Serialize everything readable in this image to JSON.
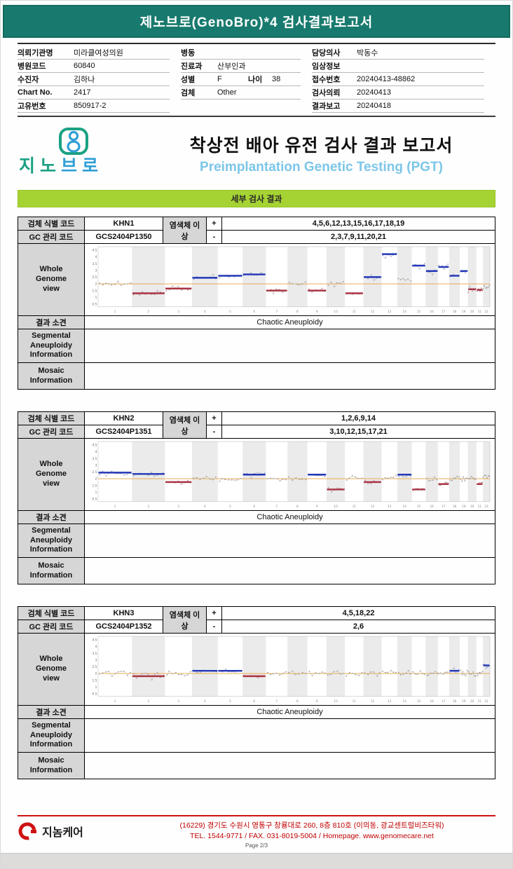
{
  "page": {
    "title": "제노브로(GenoBro)*4 검사결과보고서",
    "page_label": "Page 2/3"
  },
  "patient": {
    "col1": [
      {
        "label": "의뢰기관명",
        "value": "미라클여성의원"
      },
      {
        "label": "병원코드",
        "value": "60840"
      },
      {
        "label": "수진자",
        "value": "김하나"
      },
      {
        "label": "Chart No.",
        "value": "2417"
      },
      {
        "label": "고유번호",
        "value": "850917-2"
      }
    ],
    "col2": [
      {
        "label": "병동",
        "value": ""
      },
      {
        "label": "진료과",
        "value": "산부인과"
      },
      {
        "label": "성별",
        "value": "F",
        "label2": "나이",
        "value2": "38"
      },
      {
        "label": "검체",
        "value": "Other"
      }
    ],
    "col3": [
      {
        "label": "담당의사",
        "value": "박동수"
      },
      {
        "label": "임상정보",
        "value": ""
      },
      {
        "label": "접수번호",
        "value": "20240413-48862"
      },
      {
        "label": "검사의뢰",
        "value": "20240413"
      },
      {
        "label": "결과보고",
        "value": "20240418"
      }
    ]
  },
  "report_header": {
    "logo_text_1": "지노",
    "logo_text_2": "브로",
    "title_ko": "착상전 배아 유전 검사 결과 보고서",
    "title_en": "Preimplantation Genetic Testing (PGT)"
  },
  "section_bar": "세부 검사 결과",
  "labels": {
    "specimen_code": "검체 식별 코드",
    "gc_code": "GC 관리 코드",
    "chromosome_abnormality": "염색체 이상",
    "plus": "+",
    "minus": "-",
    "wgv": "Whole\nGenome\nview",
    "result": "결과 소견",
    "segmental": "Segmental\nAneuploidy\nInformation",
    "mosaic": "Mosaic\nInformation"
  },
  "samples": [
    {
      "specimen_id": "KHN1",
      "gc_code": "GCS2404P1350",
      "gain_chromosomes": "4,5,6,12,13,15,16,17,18,19",
      "loss_chromosomes": "2,3,7,9,11,20,21",
      "result": "Chaotic Aneuploidy",
      "segmental": "",
      "mosaic": ""
    },
    {
      "specimen_id": "KHN2",
      "gc_code": "GCS2404P1351",
      "gain_chromosomes": "1,2,6,9,14",
      "loss_chromosomes": "3,10,12,15,17,21",
      "result": "Chaotic Aneuploidy",
      "segmental": "",
      "mosaic": ""
    },
    {
      "specimen_id": "KHN3",
      "gc_code": "GCS2404P1352",
      "gain_chromosomes": "4,5,18,22",
      "loss_chromosomes": "2,6",
      "result": "Chaotic Aneuploidy",
      "segmental": "",
      "mosaic": ""
    }
  ],
  "chart_data": [
    {
      "type": "scatter",
      "title": "KHN1 Whole Genome view",
      "x_categories": [
        "1",
        "2",
        "3",
        "4",
        "5",
        "6",
        "7",
        "8",
        "9",
        "10",
        "11",
        "12",
        "13",
        "14",
        "15",
        "16",
        "17",
        "18",
        "19",
        "20",
        "21",
        "22"
      ],
      "ylim": [
        0.3,
        4.75
      ],
      "yticks": [
        0.5,
        1,
        1.5,
        2,
        2.5,
        3,
        3.5,
        4,
        4.5
      ],
      "baseline": 2,
      "values": [
        2.0,
        1.3,
        1.65,
        2.45,
        2.6,
        2.7,
        1.5,
        2.05,
        1.5,
        2.0,
        1.3,
        2.5,
        4.2,
        2.3,
        3.35,
        2.95,
        3.25,
        2.6,
        2.95,
        1.6,
        1.55,
        1.8
      ],
      "states": [
        "normal",
        "loss",
        "loss",
        "gain",
        "gain",
        "gain",
        "loss",
        "normal",
        "loss",
        "normal",
        "loss",
        "gain",
        "gain",
        "normal",
        "gain",
        "gain",
        "gain",
        "gain",
        "gain",
        "loss",
        "loss",
        "normal"
      ]
    },
    {
      "type": "scatter",
      "title": "KHN2 Whole Genome view",
      "x_categories": [
        "1",
        "2",
        "3",
        "4",
        "5",
        "6",
        "7",
        "8",
        "9",
        "10",
        "11",
        "12",
        "13",
        "14",
        "15",
        "16",
        "17",
        "18",
        "19",
        "20",
        "21",
        "22"
      ],
      "ylim": [
        0.3,
        4.75
      ],
      "yticks": [
        0.5,
        1,
        1.5,
        2,
        2.5,
        3,
        3.5,
        4,
        4.5
      ],
      "baseline": 2,
      "values": [
        2.45,
        2.35,
        1.75,
        2.0,
        2.0,
        2.3,
        2.0,
        2.0,
        2.3,
        1.2,
        2.0,
        1.75,
        2.0,
        2.3,
        1.2,
        2.0,
        1.6,
        2.0,
        2.0,
        2.05,
        1.6,
        2.2
      ],
      "states": [
        "gain",
        "gain",
        "loss",
        "normal",
        "normal",
        "gain",
        "normal",
        "normal",
        "gain",
        "loss",
        "normal",
        "loss",
        "normal",
        "gain",
        "loss",
        "normal",
        "loss",
        "normal",
        "normal",
        "normal",
        "loss",
        "normal"
      ]
    },
    {
      "type": "scatter",
      "title": "KHN3 Whole Genome view",
      "x_categories": [
        "1",
        "2",
        "3",
        "4",
        "5",
        "6",
        "7",
        "8",
        "9",
        "10",
        "11",
        "12",
        "13",
        "14",
        "15",
        "16",
        "17",
        "18",
        "19",
        "20",
        "21",
        "22"
      ],
      "ylim": [
        0.3,
        4.75
      ],
      "yticks": [
        0.5,
        1,
        1.5,
        2,
        2.5,
        3,
        3.5,
        4,
        4.5
      ],
      "baseline": 2,
      "values": [
        2.0,
        1.8,
        2.0,
        2.2,
        2.2,
        1.8,
        2.0,
        2.0,
        2.0,
        2.0,
        2.0,
        2.0,
        2.0,
        2.0,
        2.0,
        2.0,
        2.0,
        2.2,
        2.0,
        2.0,
        2.0,
        2.6
      ],
      "states": [
        "normal",
        "loss",
        "normal",
        "gain",
        "gain",
        "loss",
        "normal",
        "normal",
        "normal",
        "normal",
        "normal",
        "normal",
        "normal",
        "normal",
        "normal",
        "normal",
        "normal",
        "gain",
        "normal",
        "normal",
        "normal",
        "gain"
      ]
    }
  ],
  "footer": {
    "logo": "지놈케어",
    "address": "(16229) 경기도 수원시 영통구 창룡대로 260, 8층 810호 (이의동, 광교센트럴비즈타워)",
    "contact": "TEL. 1544-9771 / FAX. 031-8019-5004 / Homepage. www.genomecare.net"
  },
  "colors": {
    "teal": "#187a6e",
    "lime": "#a5d333",
    "gain": "#2438b6",
    "loss": "#a93545",
    "baseline": "#e7a23b",
    "dot": "#9b9b9b",
    "footer_red": "#c00000",
    "title_en_blue": "#7cc6e8"
  }
}
